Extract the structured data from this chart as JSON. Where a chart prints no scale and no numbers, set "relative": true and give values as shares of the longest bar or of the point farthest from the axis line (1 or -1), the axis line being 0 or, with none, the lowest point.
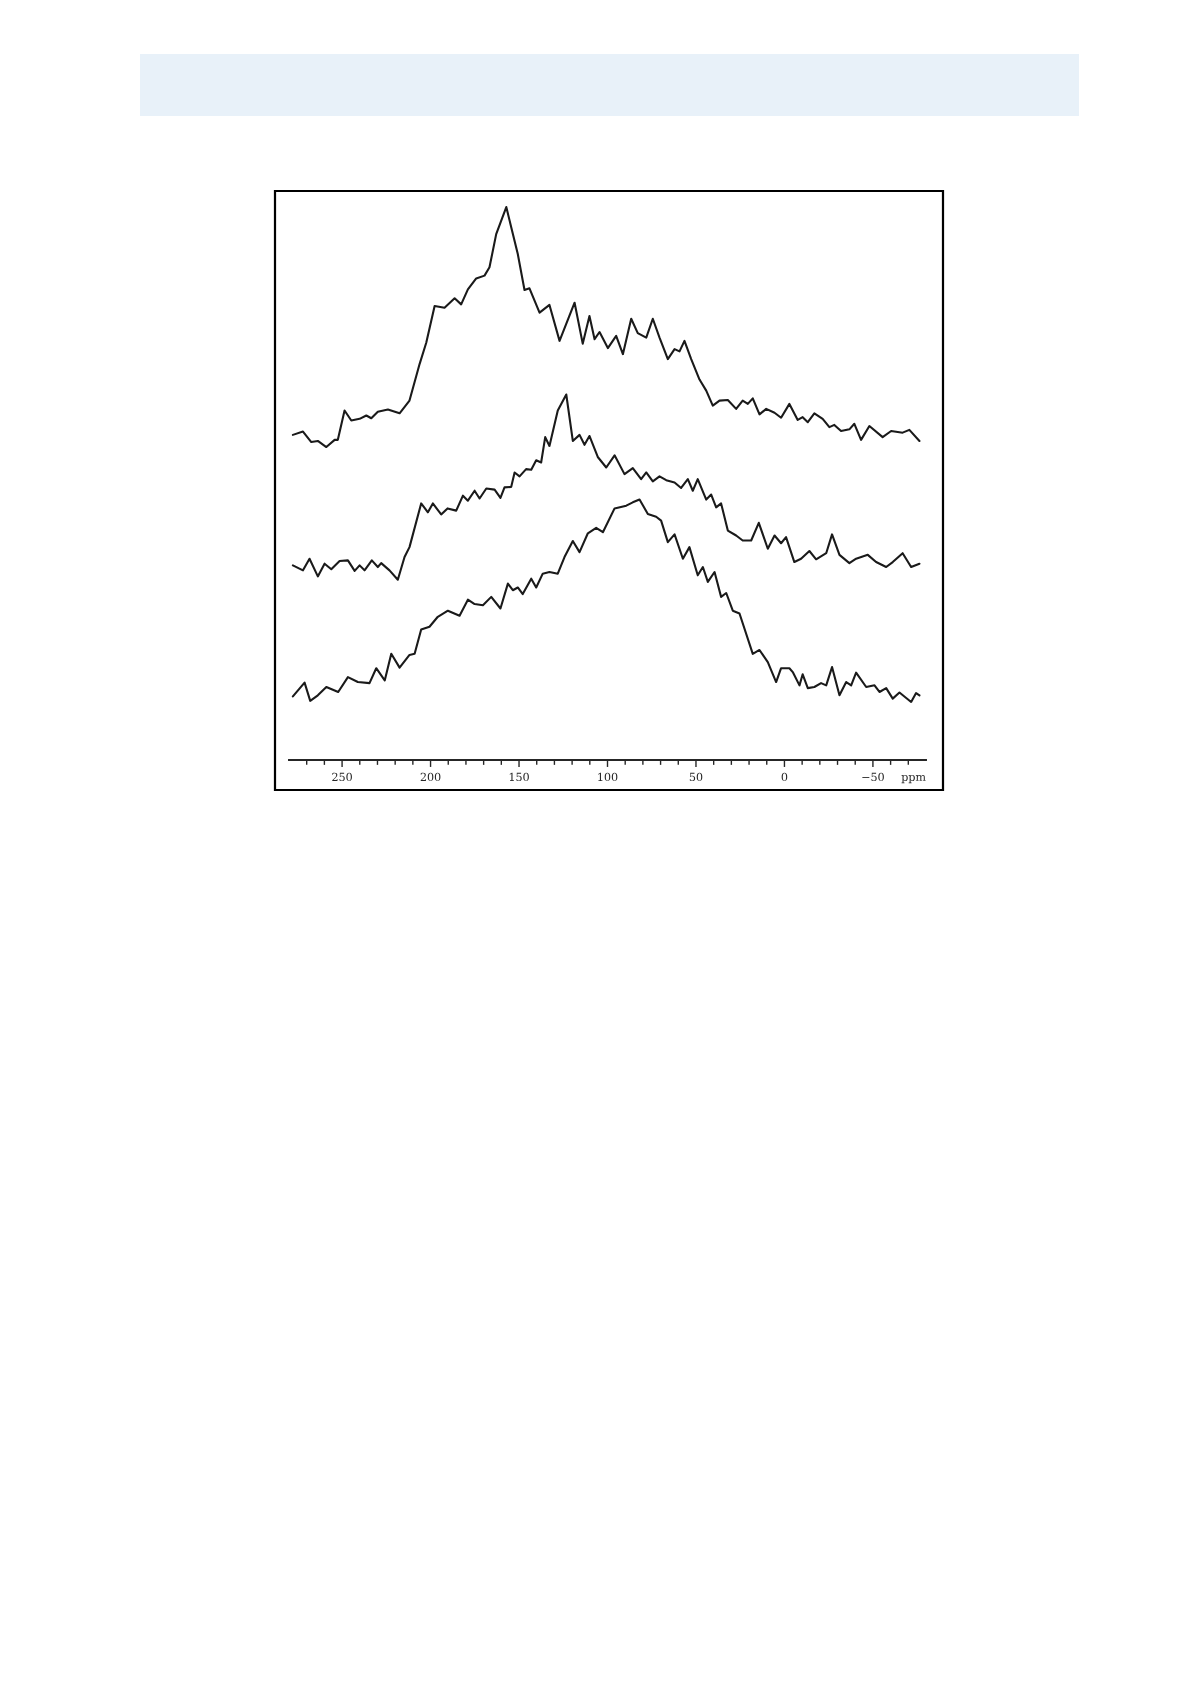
{
  "chart_data": {
    "type": "line",
    "relative": true,
    "xlabel": "ppm",
    "xlim": [
      280,
      -80
    ],
    "xticks": [
      {
        "value": 270,
        "label": null
      },
      {
        "value": 260,
        "label": null
      },
      250,
      {
        "value": 240,
        "label": null
      },
      {
        "value": 230,
        "label": null
      },
      {
        "value": 220,
        "label": null
      },
      {
        "value": 210,
        "label": null
      },
      200,
      {
        "value": 190,
        "label": null
      },
      {
        "value": 180,
        "label": null
      },
      {
        "value": 170,
        "label": null
      },
      {
        "value": 160,
        "label": null
      },
      150,
      {
        "value": 140,
        "label": null
      },
      {
        "value": 130,
        "label": null
      },
      {
        "value": 120,
        "label": null
      },
      {
        "value": 110,
        "label": null
      },
      100,
      {
        "value": 90,
        "label": null
      },
      {
        "value": 80,
        "label": null
      },
      {
        "value": 70,
        "label": null
      },
      {
        "value": 60,
        "label": null
      },
      50,
      {
        "value": 40,
        "label": null
      },
      {
        "value": 30,
        "label": null
      },
      {
        "value": 20,
        "label": null
      },
      {
        "value": 10,
        "label": null
      },
      0,
      {
        "value": -10,
        "label": null
      },
      {
        "value": -20,
        "label": null
      },
      {
        "value": -30,
        "label": null
      },
      {
        "value": -40,
        "label": null
      },
      {
        "value": -50,
        "label": "−50"
      },
      {
        "value": -60,
        "label": null
      },
      {
        "value": -70,
        "label": null
      }
    ],
    "line_style": "solid",
    "marker": "none",
    "series": [
      {
        "color": "#1a1a1a",
        "x": [
          277.8,
          272.1,
          267.4,
          263.7,
          258.9,
          254.2,
          252.4,
          248.6,
          244.8,
          240.1,
          236.3,
          233.5,
          229.8,
          224.1,
          217.5,
          211.9,
          206.2,
          202.4,
          197.7,
          192.1,
          186.4,
          182.7,
          178.9,
          174.2,
          169.5,
          166.7,
          162.9,
          157.2,
          150.7,
          146.9,
          144.1,
          138.4,
          132.8,
          127.1,
          118.6,
          114.0,
          110.2,
          107.3,
          104.5,
          99.8,
          95.1,
          91.3,
          86.6,
          82.9,
          78.1,
          74.4,
          70.6,
          65.9,
          62.1,
          59.3,
          56.5,
          52.7,
          48.0,
          44.2,
          40.5,
          36.7,
          32.0,
          27.3,
          23.6,
          20.7,
          17.9,
          14.1,
          10.3,
          5.6,
          1.9,
          -2.8,
          -7.5,
          -10.3,
          -13.2,
          -16.9,
          -21.6,
          -25.4,
          -28.2,
          -32.0,
          -36.7,
          -39.5,
          -43.3,
          -48.0,
          -55.5,
          -60.3,
          -66.8,
          -70.6,
          -76.3
        ],
        "values": [
          0.588,
          0.594,
          0.575,
          0.577,
          0.566,
          0.579,
          0.579,
          0.632,
          0.614,
          0.617,
          0.623,
          0.618,
          0.63,
          0.634,
          0.627,
          0.65,
          0.716,
          0.755,
          0.821,
          0.818,
          0.835,
          0.824,
          0.851,
          0.871,
          0.876,
          0.891,
          0.951,
          1.0,
          0.915,
          0.85,
          0.853,
          0.809,
          0.823,
          0.758,
          0.827,
          0.753,
          0.803,
          0.761,
          0.774,
          0.745,
          0.767,
          0.734,
          0.798,
          0.772,
          0.764,
          0.798,
          0.764,
          0.725,
          0.743,
          0.739,
          0.758,
          0.725,
          0.688,
          0.668,
          0.641,
          0.65,
          0.651,
          0.635,
          0.65,
          0.644,
          0.654,
          0.625,
          0.635,
          0.628,
          0.619,
          0.644,
          0.615,
          0.62,
          0.611,
          0.627,
          0.617,
          0.602,
          0.606,
          0.595,
          0.598,
          0.608,
          0.579,
          0.604,
          0.584,
          0.595,
          0.592,
          0.597,
          0.577
        ]
      },
      {
        "color": "#1a1a1a",
        "x": [
          277.8,
          272.1,
          268.4,
          263.7,
          259.9,
          256.1,
          251.4,
          246.7,
          242.9,
          240.1,
          237.3,
          233.2,
          229.8,
          227.9,
          223.2,
          218.5,
          214.7,
          211.9,
          205.3,
          201.5,
          198.7,
          194.0,
          190.4,
          185.5,
          181.7,
          178.9,
          175.1,
          172.3,
          168.5,
          163.8,
          160.5,
          158.2,
          154.4,
          152.5,
          149.7,
          146.0,
          143.1,
          140.3,
          137.5,
          135.2,
          132.8,
          128.1,
          123.3,
          119.6,
          115.8,
          113.0,
          110.2,
          105.5,
          100.7,
          96.0,
          90.4,
          85.7,
          81.0,
          78.1,
          74.4,
          70.6,
          66.8,
          62.1,
          58.4,
          54.6,
          51.8,
          49.0,
          44.2,
          41.4,
          38.6,
          35.8,
          32.0,
          27.3,
          23.6,
          18.8,
          14.5,
          9.4,
          5.6,
          1.9,
          -0.9,
          -5.6,
          -9.4,
          -14.1,
          -17.9,
          -23.6,
          -26.9,
          -31.1,
          -36.7,
          -40.5,
          -47.1,
          -51.8,
          -57.5,
          -61.2,
          -66.8,
          -71.6,
          -76.3
        ],
        "values": [
          0.352,
          0.343,
          0.364,
          0.332,
          0.355,
          0.345,
          0.36,
          0.361,
          0.342,
          0.352,
          0.343,
          0.361,
          0.349,
          0.356,
          0.343,
          0.326,
          0.367,
          0.385,
          0.464,
          0.448,
          0.464,
          0.444,
          0.455,
          0.451,
          0.478,
          0.469,
          0.487,
          0.473,
          0.491,
          0.489,
          0.474,
          0.493,
          0.494,
          0.52,
          0.513,
          0.526,
          0.525,
          0.542,
          0.538,
          0.584,
          0.568,
          0.632,
          0.661,
          0.577,
          0.588,
          0.57,
          0.586,
          0.548,
          0.529,
          0.551,
          0.517,
          0.528,
          0.508,
          0.52,
          0.504,
          0.513,
          0.506,
          0.502,
          0.492,
          0.508,
          0.487,
          0.508,
          0.471,
          0.48,
          0.457,
          0.464,
          0.415,
          0.406,
          0.397,
          0.397,
          0.429,
          0.382,
          0.406,
          0.392,
          0.403,
          0.358,
          0.364,
          0.378,
          0.363,
          0.374,
          0.408,
          0.371,
          0.356,
          0.364,
          0.371,
          0.358,
          0.349,
          0.358,
          0.374,
          0.349,
          0.355
        ]
      },
      {
        "color": "#1a1a1a",
        "x": [
          277.8,
          271.2,
          268.0,
          263.7,
          258.9,
          252.2,
          246.7,
          241.1,
          234.5,
          230.7,
          225.9,
          222.2,
          217.5,
          211.9,
          209.0,
          205.3,
          200.6,
          195.9,
          190.2,
          183.6,
          178.9,
          175.1,
          170.4,
          165.7,
          160.5,
          156.3,
          153.5,
          150.7,
          147.9,
          143.1,
          140.3,
          136.6,
          132.8,
          128.1,
          124.3,
          119.6,
          115.8,
          111.1,
          106.4,
          102.6,
          96.0,
          89.4,
          85.7,
          81.9,
          77.2,
          72.5,
          69.7,
          65.9,
          62.1,
          57.4,
          53.7,
          49.0,
          46.1,
          43.3,
          39.5,
          35.8,
          32.9,
          29.2,
          25.4,
          17.9,
          14.1,
          9.4,
          4.7,
          1.9,
          -2.8,
          -4.7,
          -8.5,
          -10.3,
          -13.2,
          -16.9,
          -20.7,
          -23.6,
          -26.9,
          -31.1,
          -34.9,
          -37.7,
          -40.5,
          -46.2,
          -50.9,
          -53.7,
          -57.5,
          -61.2,
          -65.0,
          -71.6,
          -74.4,
          -76.3
        ],
        "values": [
          0.115,
          0.14,
          0.107,
          0.117,
          0.132,
          0.123,
          0.15,
          0.141,
          0.139,
          0.166,
          0.144,
          0.192,
          0.167,
          0.19,
          0.192,
          0.236,
          0.241,
          0.259,
          0.27,
          0.261,
          0.29,
          0.282,
          0.28,
          0.295,
          0.274,
          0.319,
          0.307,
          0.312,
          0.3,
          0.328,
          0.312,
          0.337,
          0.34,
          0.337,
          0.367,
          0.396,
          0.376,
          0.41,
          0.42,
          0.412,
          0.455,
          0.46,
          0.466,
          0.471,
          0.445,
          0.44,
          0.433,
          0.394,
          0.408,
          0.364,
          0.385,
          0.334,
          0.349,
          0.322,
          0.34,
          0.295,
          0.302,
          0.27,
          0.265,
          0.192,
          0.199,
          0.177,
          0.141,
          0.166,
          0.166,
          0.159,
          0.135,
          0.155,
          0.13,
          0.132,
          0.139,
          0.135,
          0.168,
          0.117,
          0.141,
          0.135,
          0.158,
          0.132,
          0.135,
          0.123,
          0.13,
          0.111,
          0.122,
          0.105,
          0.121,
          0.117
        ]
      }
    ]
  }
}
